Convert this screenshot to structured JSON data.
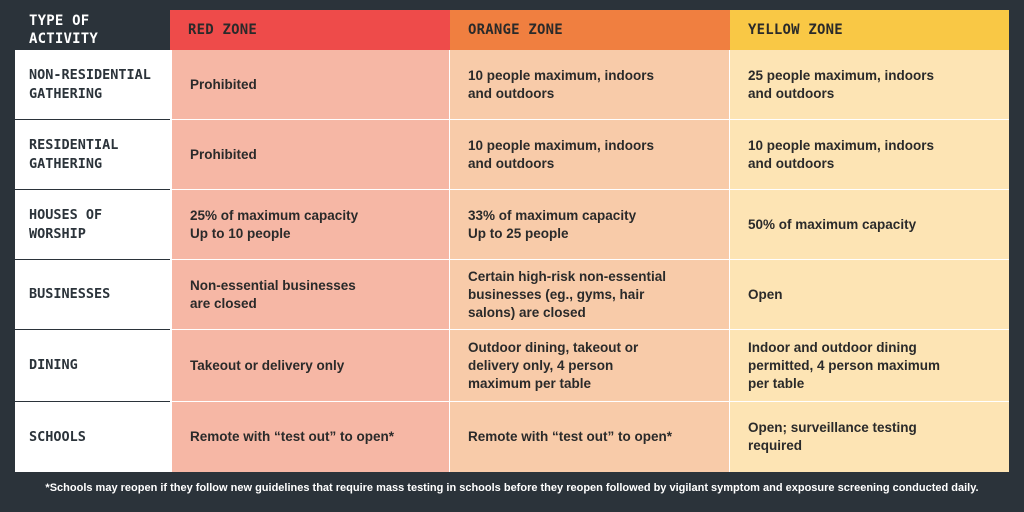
{
  "header": {
    "type_label": "TYPE OF ACTIVITY",
    "red_label": "RED ZONE",
    "orange_label": "ORANGE ZONE",
    "yellow_label": "YELLOW ZONE"
  },
  "colors": {
    "red_header": "#ee4b4a",
    "orange_header": "#f07f40",
    "yellow_header": "#f9c845",
    "red_cell": "#f6b7a5",
    "orange_cell": "#f8cba9",
    "yellow_cell": "#fde4b4",
    "background": "#2b333a"
  },
  "rows": [
    {
      "activity": "NON-RESIDENTIAL\nGATHERING",
      "red": "Prohibited",
      "orange": "10 people maximum, indoors\nand outdoors",
      "yellow": "25 people maximum, indoors\nand outdoors"
    },
    {
      "activity": "RESIDENTIAL\nGATHERING",
      "red": "Prohibited",
      "orange": "10 people maximum, indoors\nand outdoors",
      "yellow": "10 people maximum, indoors\nand outdoors"
    },
    {
      "activity": "HOUSES OF\nWORSHIP",
      "red": "25% of maximum capacity\nUp to 10 people",
      "orange": "33% of maximum capacity\nUp to 25 people",
      "yellow": "50% of maximum capacity"
    },
    {
      "activity": "BUSINESSES",
      "red": "Non-essential businesses\nare closed",
      "orange": "Certain high-risk non-essential\nbusinesses (eg., gyms, hair\nsalons) are closed",
      "yellow": "Open"
    },
    {
      "activity": "DINING",
      "red": "Takeout or delivery only",
      "orange": "Outdoor dining, takeout or\ndelivery only, 4 person\nmaximum per table",
      "yellow": "Indoor and outdoor dining\npermitted, 4 person maximum\nper table"
    },
    {
      "activity": "SCHOOLS",
      "red": "Remote with “test out” to open*",
      "orange": "Remote with “test out” to open*",
      "yellow": "Open; surveillance testing\nrequired"
    }
  ],
  "footnote": "*Schools may reopen if they follow new guidelines that require mass testing in schools before they reopen followed by vigilant symptom and exposure screening conducted daily."
}
